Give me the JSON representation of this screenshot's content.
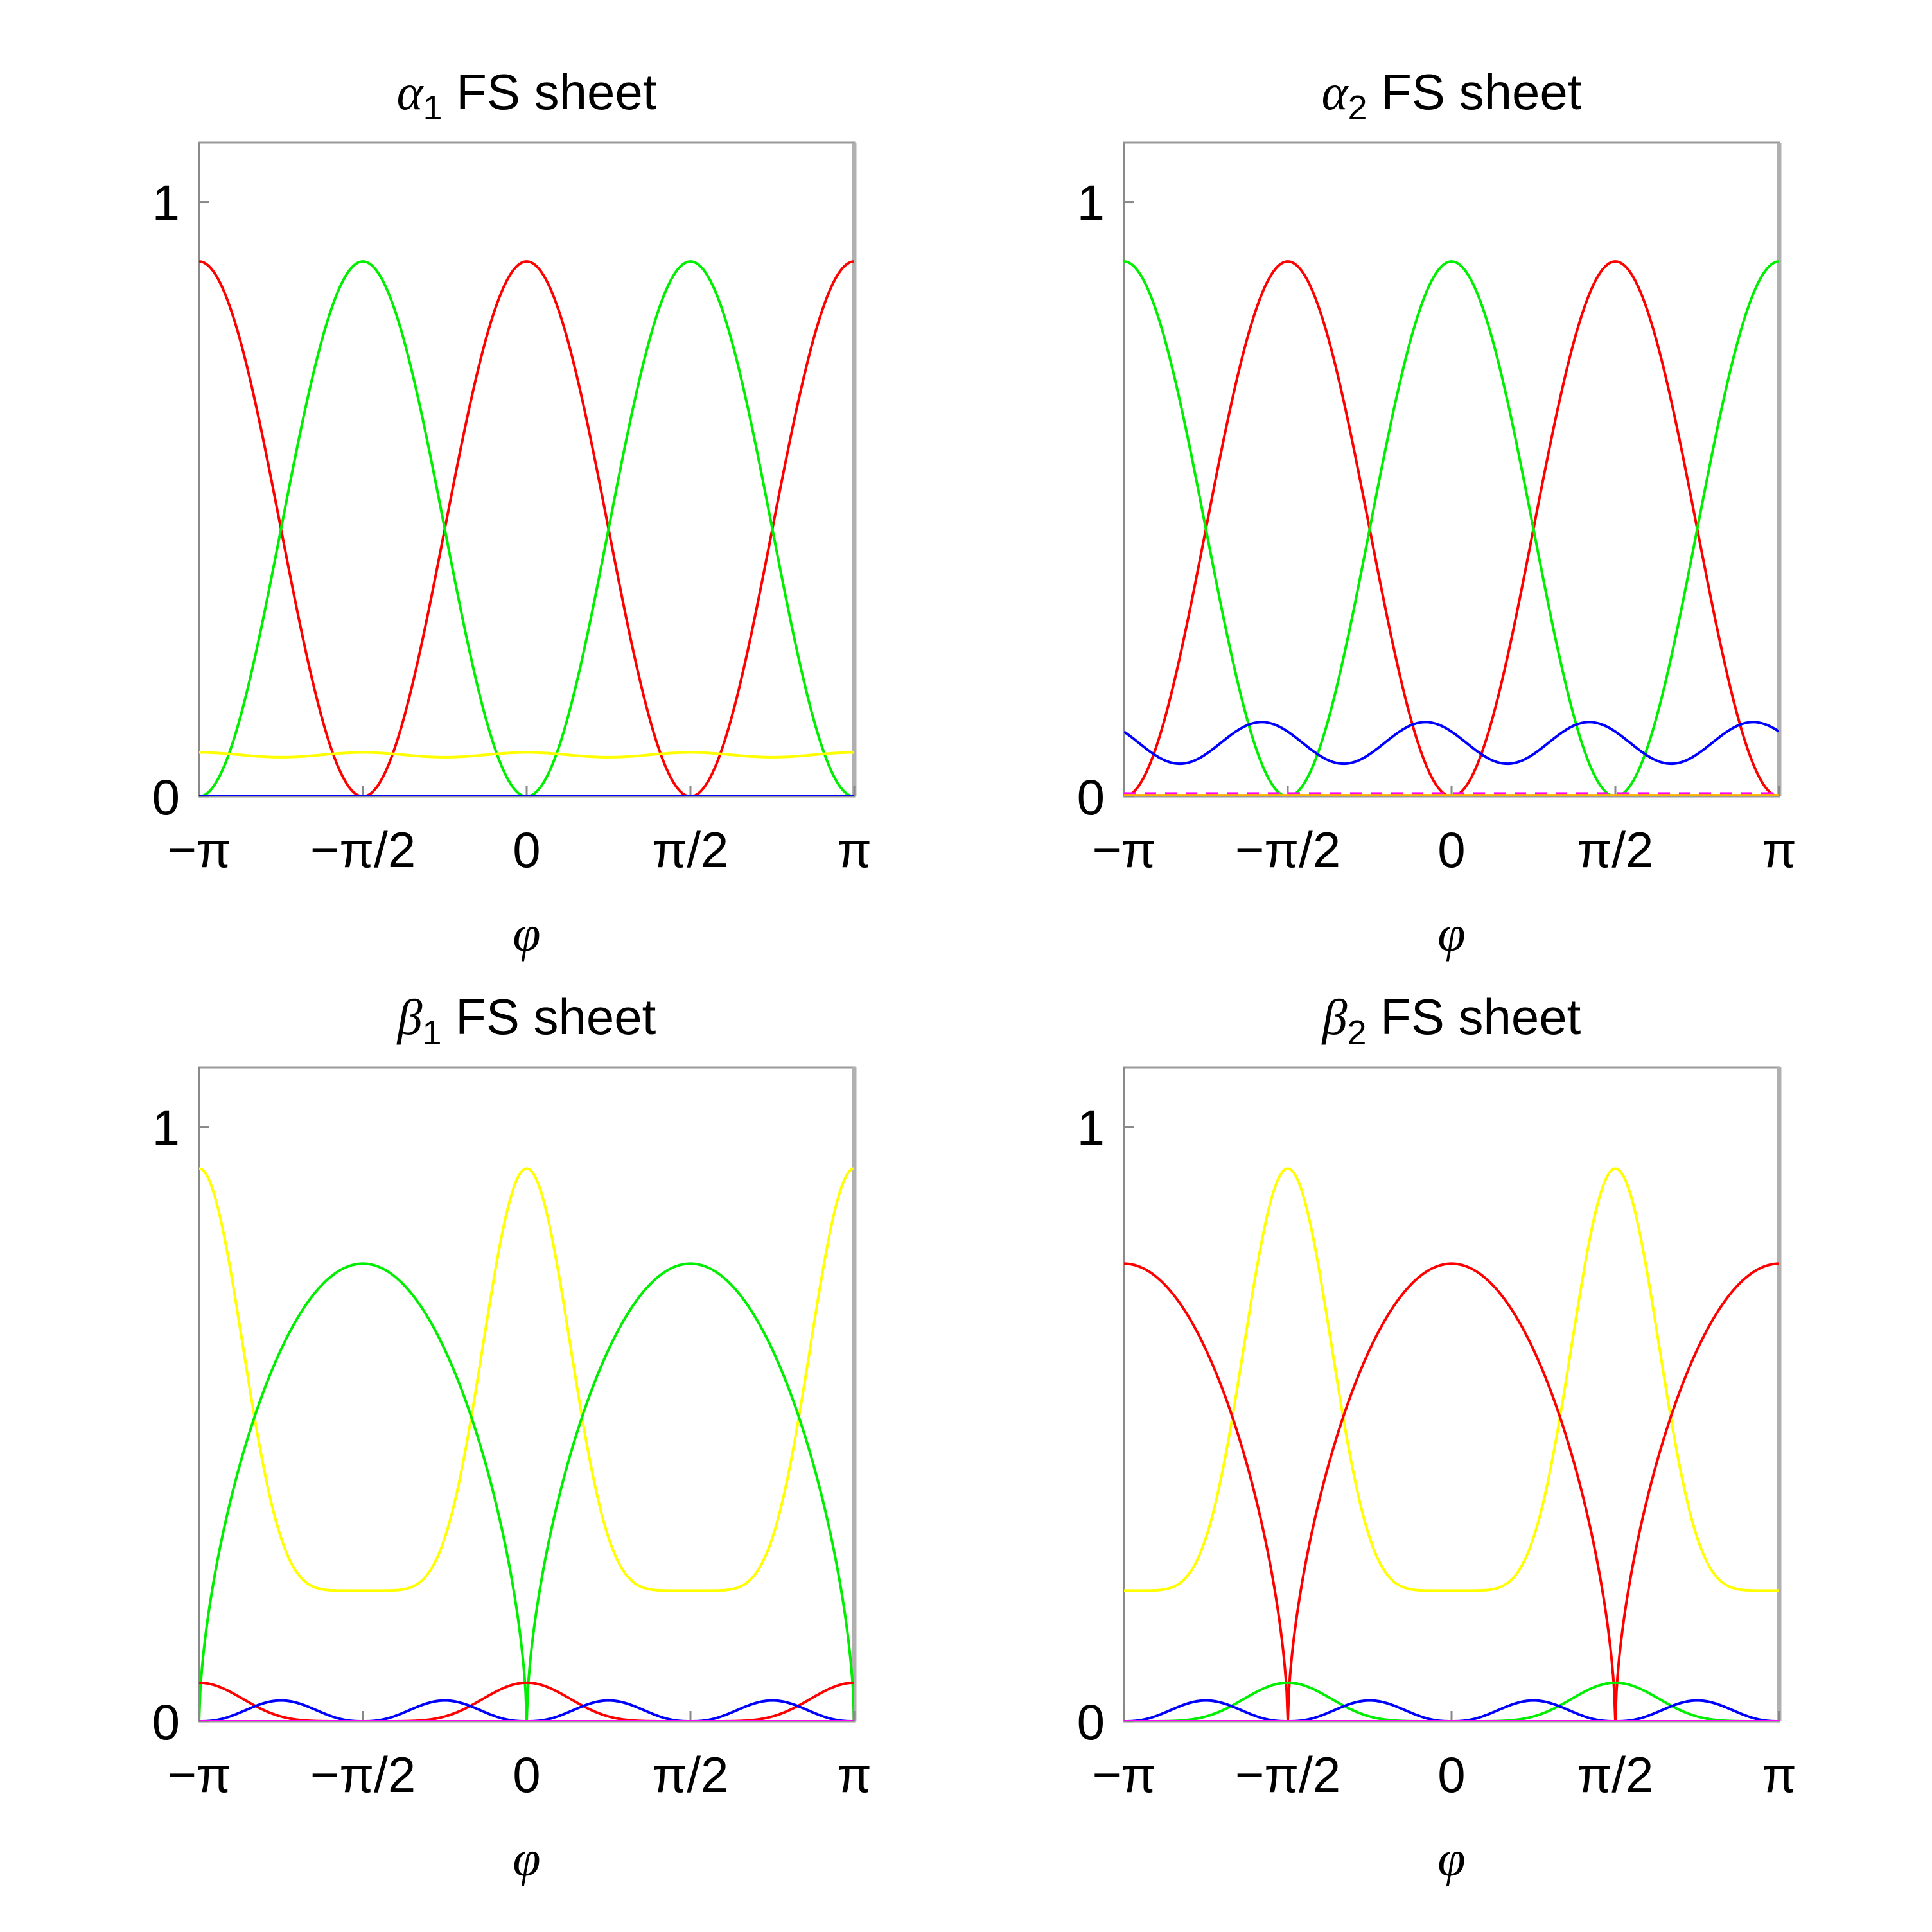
{
  "chart_data": [
    {
      "type": "line",
      "title": {
        "greek": "α",
        "sub": "1",
        "rest": " FS sheet"
      },
      "xlabel": "φ",
      "xlim": [
        -3.14159,
        3.14159
      ],
      "ylim": [
        0,
        1.1
      ],
      "xticks": [
        -3.14159,
        -1.5708,
        0,
        1.5708,
        3.14159
      ],
      "xtick_labels": [
        "−π",
        "−π/2",
        "0",
        "π/2",
        "π"
      ],
      "yticks": [
        0,
        1
      ],
      "ytick_labels": [
        "0",
        "1"
      ],
      "series": [
        {
          "color": "#ff0000",
          "form": "cos2",
          "offset": 0,
          "amp": 0.9,
          "base": 0
        },
        {
          "color": "#00ee00",
          "form": "sin2",
          "offset": 0,
          "amp": 0.9,
          "base": 0
        },
        {
          "color": "#ffff00",
          "form": "ripple",
          "base": 0.07,
          "amp": 0.004,
          "freq": 4,
          "phase": 0
        },
        {
          "color": "#0000ff",
          "form": "const",
          "base": 0.0
        }
      ]
    },
    {
      "type": "line",
      "title": {
        "greek": "α",
        "sub": "2",
        "rest": " FS sheet"
      },
      "xlabel": "φ",
      "xlim": [
        -3.14159,
        3.14159
      ],
      "ylim": [
        0,
        1.1
      ],
      "xticks": [
        -3.14159,
        -1.5708,
        0,
        1.5708,
        3.14159
      ],
      "xtick_labels": [
        "−π",
        "−π/2",
        "0",
        "π/2",
        "π"
      ],
      "yticks": [
        0,
        1
      ],
      "ytick_labels": [
        "0",
        "1"
      ],
      "series": [
        {
          "color": "#ff0000",
          "form": "sin2",
          "offset": 0,
          "amp": 0.9,
          "base": 0
        },
        {
          "color": "#00ee00",
          "form": "cos2",
          "offset": 0,
          "amp": 0.9,
          "base": 0
        },
        {
          "color": "#0000ff",
          "form": "ripple",
          "base": 0.09,
          "amp": 0.035,
          "freq": 4,
          "phase": 1
        },
        {
          "color": "#ff00ff",
          "form": "dashed",
          "base": 0.005
        },
        {
          "color": "#ffb000",
          "form": "const",
          "base": 0.002
        }
      ]
    },
    {
      "type": "line",
      "title": {
        "greek": "β",
        "sub": "1",
        "rest": " FS sheet"
      },
      "xlabel": "φ",
      "xlim": [
        -3.14159,
        3.14159
      ],
      "ylim": [
        0,
        1.1
      ],
      "xticks": [
        -3.14159,
        -1.5708,
        0,
        1.5708,
        3.14159
      ],
      "xtick_labels": [
        "−π",
        "−π/2",
        "0",
        "π/2",
        "π"
      ],
      "yticks": [
        0,
        1
      ],
      "ytick_labels": [
        "0",
        "1"
      ],
      "series": [
        {
          "color": "#ffff00",
          "form": "peak",
          "center": 0,
          "max": 0.93,
          "min": 0.22,
          "sharp": 3
        },
        {
          "color": "#00ee00",
          "form": "dome",
          "center": 0,
          "max": 0.77,
          "sharp": 3
        },
        {
          "color": "#ff0000",
          "form": "cos2pow",
          "amp": 0.065,
          "pow": 3,
          "shift": 0
        },
        {
          "color": "#0000ff",
          "form": "sin4",
          "amp": 0.035
        },
        {
          "color": "#ff00ff",
          "form": "const",
          "base": 0.0
        }
      ]
    },
    {
      "type": "line",
      "title": {
        "greek": "β",
        "sub": "2",
        "rest": " FS sheet"
      },
      "xlabel": "φ",
      "xlim": [
        -3.14159,
        3.14159
      ],
      "ylim": [
        0,
        1.1
      ],
      "xticks": [
        -3.14159,
        -1.5708,
        0,
        1.5708,
        3.14159
      ],
      "xtick_labels": [
        "−π",
        "−π/2",
        "0",
        "π/2",
        "π"
      ],
      "yticks": [
        0,
        1
      ],
      "ytick_labels": [
        "0",
        "1"
      ],
      "series": [
        {
          "color": "#ffff00",
          "form": "peak",
          "center": 1.5708,
          "max": 0.93,
          "min": 0.22,
          "sharp": 3
        },
        {
          "color": "#ff0000",
          "form": "dome",
          "center": 1.5708,
          "max": 0.77,
          "sharp": 3
        },
        {
          "color": "#00ee00",
          "form": "cos2pow",
          "amp": 0.065,
          "pow": 3,
          "shift": 1.5708
        },
        {
          "color": "#0000ff",
          "form": "sin4",
          "amp": 0.035
        },
        {
          "color": "#ff00ff",
          "form": "const",
          "base": 0.0
        }
      ]
    }
  ]
}
